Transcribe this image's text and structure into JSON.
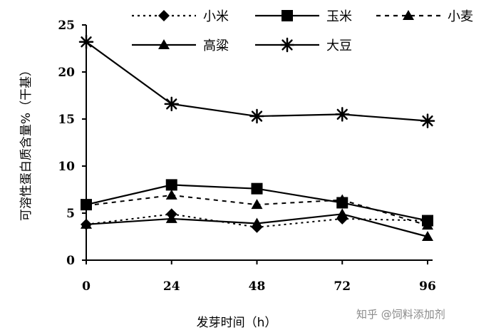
{
  "chart_data": {
    "type": "line",
    "xlabel": "发芽时间（h）",
    "ylabel": "可溶性蛋白质含量%（干基）",
    "x": [
      0,
      24,
      48,
      72,
      96
    ],
    "xticks": [
      "0",
      "24",
      "48",
      "72",
      "96"
    ],
    "yticks": [
      "0",
      "5",
      "10",
      "15",
      "20",
      "25"
    ],
    "xlim": [
      0,
      96
    ],
    "ylim": [
      0,
      25
    ],
    "grid": false,
    "legend_position": "top",
    "series": [
      {
        "name": "小米",
        "marker": "diamond",
        "line": "dotted",
        "values": [
          3.8,
          4.9,
          3.5,
          4.4,
          4.2
        ]
      },
      {
        "name": "玉米",
        "marker": "square",
        "line": "solid",
        "values": [
          5.9,
          8.0,
          7.6,
          6.1,
          4.2
        ]
      },
      {
        "name": "小麦",
        "marker": "triangle",
        "line": "dashed",
        "values": [
          5.8,
          6.9,
          5.9,
          6.4,
          3.7
        ]
      },
      {
        "name": "高粱",
        "marker": "triangle",
        "line": "solid",
        "values": [
          3.8,
          4.4,
          3.9,
          4.9,
          2.5
        ]
      },
      {
        "name": "大豆",
        "marker": "star",
        "line": "solid",
        "values": [
          23.2,
          16.6,
          15.3,
          15.5,
          14.8
        ]
      }
    ]
  },
  "watermark": "知乎 @饲料添加剂"
}
